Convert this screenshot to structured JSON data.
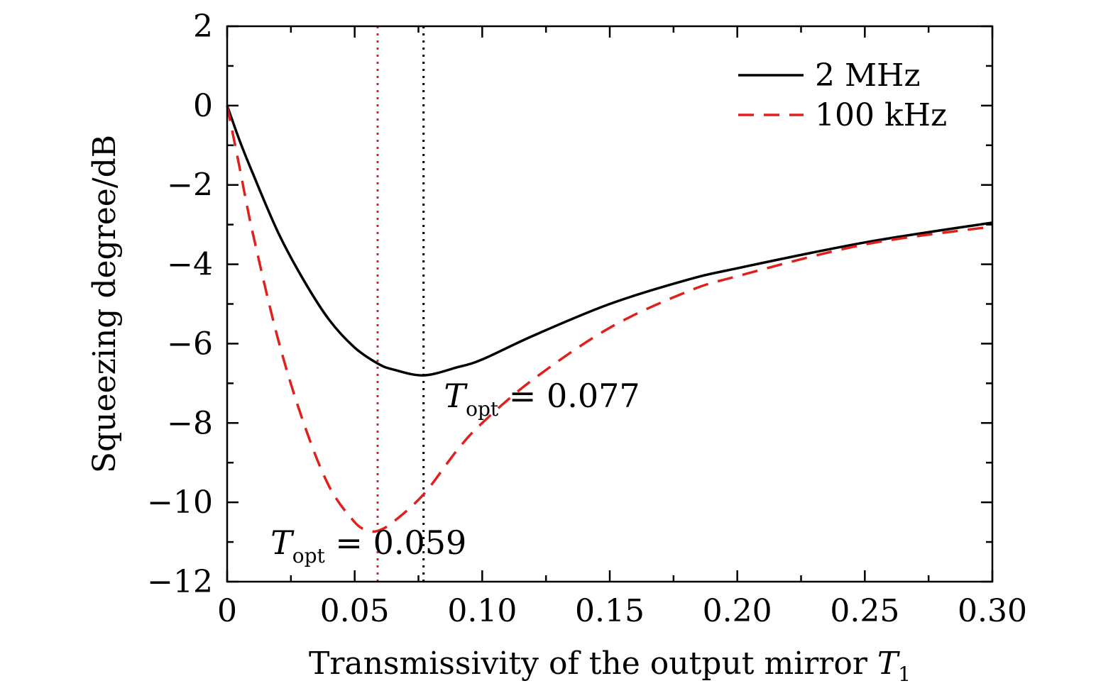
{
  "chart_data": {
    "type": "line",
    "xlabel": "Transmissivity of the output mirror T1",
    "xlabel_main": "Transmissivity of the output mirror ",
    "xlabel_sym": "T",
    "xlabel_sub": "1",
    "ylabel": "Squeezing degree/dB",
    "xlim": [
      0,
      0.3
    ],
    "ylim": [
      -12,
      2
    ],
    "x_ticks": [
      0,
      0.05,
      0.1,
      0.15,
      0.2,
      0.25,
      0.3
    ],
    "x_tick_labels": [
      "0",
      "0.05",
      "0.10",
      "0.15",
      "0.20",
      "0.25",
      "0.30"
    ],
    "y_ticks": [
      2,
      0,
      -2,
      -4,
      -6,
      -8,
      -10,
      -12
    ],
    "y_tick_labels": [
      "2",
      "0",
      "−2",
      "−4",
      "−6",
      "−8",
      "−10",
      "−12"
    ],
    "grid": false,
    "legend_position": "top-right",
    "series": [
      {
        "name": "2 MHz",
        "color": "#000000",
        "style": "solid",
        "x": [
          0,
          0.005,
          0.01,
          0.02,
          0.03,
          0.04,
          0.05,
          0.059,
          0.065,
          0.077,
          0.09,
          0.1,
          0.12,
          0.15,
          0.18,
          0.2,
          0.25,
          0.3
        ],
        "y": [
          0,
          -0.9,
          -1.7,
          -3.2,
          -4.4,
          -5.4,
          -6.1,
          -6.5,
          -6.65,
          -6.8,
          -6.6,
          -6.4,
          -5.8,
          -5.0,
          -4.4,
          -4.1,
          -3.45,
          -2.95
        ]
      },
      {
        "name": "100 kHz",
        "color": "#e0201c",
        "style": "dashed",
        "x": [
          0,
          0.005,
          0.01,
          0.02,
          0.03,
          0.04,
          0.05,
          0.055,
          0.059,
          0.065,
          0.077,
          0.09,
          0.1,
          0.12,
          0.15,
          0.18,
          0.2,
          0.25,
          0.3
        ],
        "y": [
          0,
          -1.6,
          -3.2,
          -5.9,
          -8.0,
          -9.6,
          -10.5,
          -10.7,
          -10.72,
          -10.5,
          -9.8,
          -8.7,
          -8.0,
          -6.9,
          -5.6,
          -4.7,
          -4.3,
          -3.5,
          -3.05
        ]
      }
    ],
    "vlines": [
      {
        "x": 0.059,
        "color": "#e0201c",
        "style": "dotted"
      },
      {
        "x": 0.077,
        "color": "#000000",
        "style": "dotted"
      }
    ],
    "annotations": [
      {
        "sym": "T",
        "sub": "opt",
        "rest": " = 0.077",
        "x": 0.085,
        "y": -7.6
      },
      {
        "sym": "T",
        "sub": "opt",
        "rest": " = 0.059",
        "x": 0.017,
        "y": -11.3
      }
    ]
  }
}
